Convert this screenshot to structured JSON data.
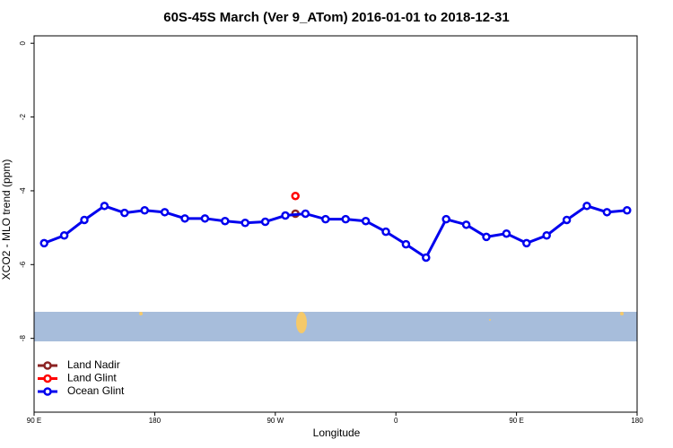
{
  "chart_data": {
    "type": "line",
    "title": "60S-45S March (Ver 9_ATom)   2016-01-01 to 2018-12-31",
    "x_label": "Longitude",
    "y_label": "XCO2 - MLO trend (ppm)",
    "xlim": [
      90,
      540
    ],
    "ylim": [
      -10,
      0.2
    ],
    "xticks": [
      {
        "value": 90,
        "label": "90 E"
      },
      {
        "value": 180,
        "label": "180"
      },
      {
        "value": 270,
        "label": "90 W"
      },
      {
        "value": 360,
        "label": "0"
      },
      {
        "value": 450,
        "label": "90 E"
      },
      {
        "value": 540,
        "label": "180"
      }
    ],
    "yticks": [
      0,
      -2,
      -4,
      -6,
      -8
    ],
    "legend": "bottom-left",
    "series": [
      {
        "name": "Land Nadir",
        "color": "#8b2323",
        "x": [
          285
        ],
        "values": [
          -4.62
        ]
      },
      {
        "name": "Land Glint",
        "color": "#ff0000",
        "x": [
          285
        ],
        "values": [
          -4.14
        ]
      },
      {
        "name": "Ocean Glint",
        "color": "#0000ee",
        "x": [
          97.5,
          112.5,
          127.5,
          142.5,
          157.5,
          172.5,
          187.5,
          202.5,
          217.5,
          232.5,
          247.5,
          262.5,
          277.5,
          292.5,
          307.5,
          322.5,
          337.5,
          352.5,
          367.5,
          382.5,
          397.5,
          412.5,
          427.5,
          442.5,
          457.5,
          472.5,
          487.5,
          502.5,
          517.5,
          532.5
        ],
        "values": [
          -5.42,
          -5.21,
          -4.79,
          -4.41,
          -4.6,
          -4.53,
          -4.58,
          -4.75,
          -4.75,
          -4.82,
          -4.87,
          -4.84,
          -4.67,
          -4.62,
          -4.77,
          -4.77,
          -4.82,
          -5.11,
          -5.45,
          -5.81,
          -4.77,
          -4.92,
          -5.25,
          -5.16,
          -5.42,
          -5.21,
          -4.79,
          -4.41,
          -4.58,
          -4.53
        ]
      }
    ]
  }
}
